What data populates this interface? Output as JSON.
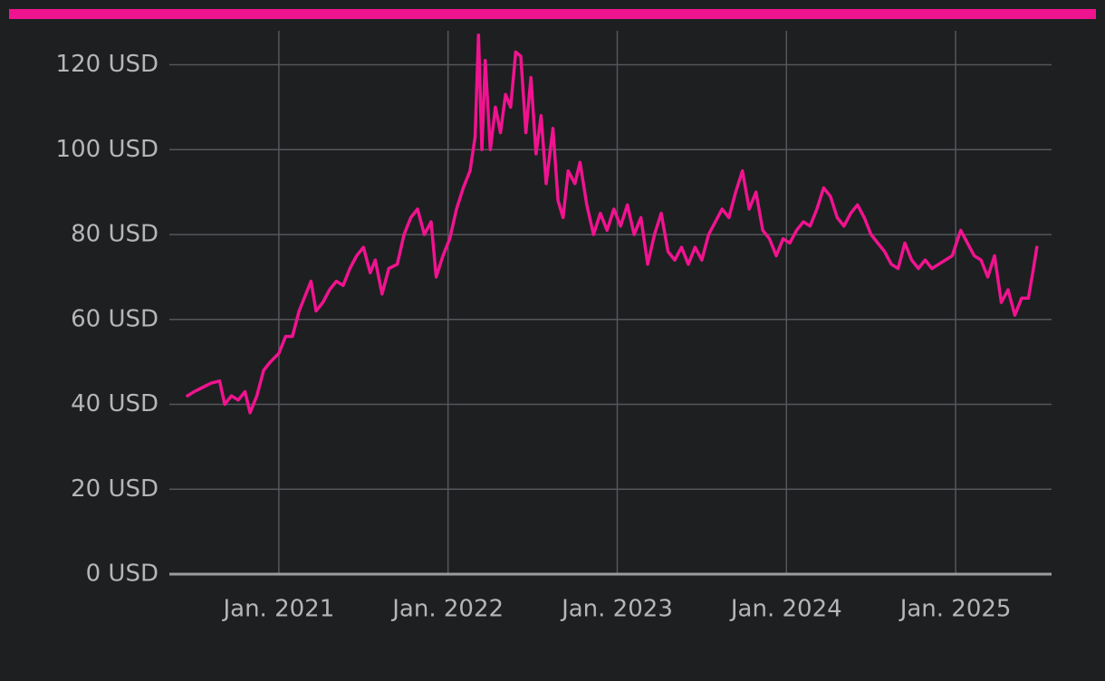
{
  "chart_data": {
    "type": "line",
    "color": "#f0138f",
    "grid": true,
    "x": [
      2020.46,
      2020.5,
      2020.55,
      2020.6,
      2020.65,
      2020.68,
      2020.72,
      2020.76,
      2020.8,
      2020.83,
      2020.87,
      2020.91,
      2020.95,
      2021.0,
      2021.04,
      2021.08,
      2021.12,
      2021.16,
      2021.19,
      2021.22,
      2021.26,
      2021.3,
      2021.34,
      2021.38,
      2021.42,
      2021.46,
      2021.5,
      2021.54,
      2021.57,
      2021.61,
      2021.65,
      2021.7,
      2021.74,
      2021.78,
      2021.82,
      2021.86,
      2021.9,
      2021.93,
      2021.97,
      2022.01,
      2022.05,
      2022.09,
      2022.13,
      2022.16,
      2022.18,
      2022.2,
      2022.22,
      2022.25,
      2022.28,
      2022.31,
      2022.34,
      2022.37,
      2022.4,
      2022.43,
      2022.46,
      2022.49,
      2022.52,
      2022.55,
      2022.58,
      2022.62,
      2022.65,
      2022.68,
      2022.71,
      2022.75,
      2022.78,
      2022.82,
      2022.86,
      2022.9,
      2022.94,
      2022.98,
      2023.02,
      2023.06,
      2023.1,
      2023.14,
      2023.18,
      2023.22,
      2023.26,
      2023.3,
      2023.34,
      2023.38,
      2023.42,
      2023.46,
      2023.5,
      2023.54,
      2023.58,
      2023.62,
      2023.66,
      2023.7,
      2023.74,
      2023.78,
      2023.82,
      2023.86,
      2023.9,
      2023.94,
      2023.98,
      2024.02,
      2024.06,
      2024.1,
      2024.14,
      2024.18,
      2024.22,
      2024.26,
      2024.3,
      2024.34,
      2024.38,
      2024.42,
      2024.46,
      2024.5,
      2024.54,
      2024.58,
      2024.62,
      2024.66,
      2024.7,
      2024.74,
      2024.78,
      2024.82,
      2024.86,
      2024.9,
      2024.94,
      2024.98,
      2025.03,
      2025.07,
      2025.11,
      2025.15,
      2025.19,
      2025.23,
      2025.27,
      2025.31,
      2025.35,
      2025.39,
      2025.43,
      2025.46,
      2025.48
    ],
    "values": [
      42,
      43,
      44,
      45,
      45.5,
      40,
      42,
      41,
      43,
      38,
      42,
      48,
      50,
      52,
      56,
      56,
      62,
      66,
      69,
      62,
      64,
      67,
      69,
      68,
      72,
      75,
      77,
      71,
      74,
      66,
      72,
      73,
      80,
      84,
      86,
      80,
      83,
      70,
      75,
      79,
      86,
      91,
      95,
      103,
      127,
      100,
      121,
      100,
      110,
      104,
      113,
      110,
      123,
      122,
      104,
      117,
      99,
      108,
      92,
      105,
      88,
      84,
      95,
      92,
      97,
      87,
      80,
      85,
      81,
      86,
      82,
      87,
      80,
      84,
      73,
      80,
      85,
      76,
      74,
      77,
      73,
      77,
      74,
      80,
      83,
      86,
      84,
      90,
      95,
      86,
      90,
      81,
      79,
      75,
      79,
      78,
      81,
      83,
      82,
      86,
      91,
      89,
      84,
      82,
      85,
      87,
      84,
      80,
      78,
      76,
      73,
      72,
      78,
      74,
      72,
      74,
      72,
      73,
      74,
      75,
      81,
      78,
      75,
      74,
      70,
      75,
      64,
      67,
      61,
      65,
      65,
      72,
      77
    ],
    "xlim": [
      2020.353,
      2025.567
    ],
    "xticks": [
      {
        "value": 2021,
        "label": "Jan. 2021"
      },
      {
        "value": 2022,
        "label": "Jan. 2022"
      },
      {
        "value": 2023,
        "label": "Jan. 2023"
      },
      {
        "value": 2024,
        "label": "Jan. 2024"
      },
      {
        "value": 2025,
        "label": "Jan. 2025"
      }
    ],
    "ylim": [
      0,
      128
    ],
    "yticks": [
      {
        "value": 0,
        "label": "0 USD"
      },
      {
        "value": 20,
        "label": "20 USD"
      },
      {
        "value": 40,
        "label": "40 USD"
      },
      {
        "value": 60,
        "label": "60 USD"
      },
      {
        "value": 80,
        "label": "80 USD"
      },
      {
        "value": 100,
        "label": "100 USD"
      },
      {
        "value": 120,
        "label": "120 USD"
      }
    ]
  }
}
